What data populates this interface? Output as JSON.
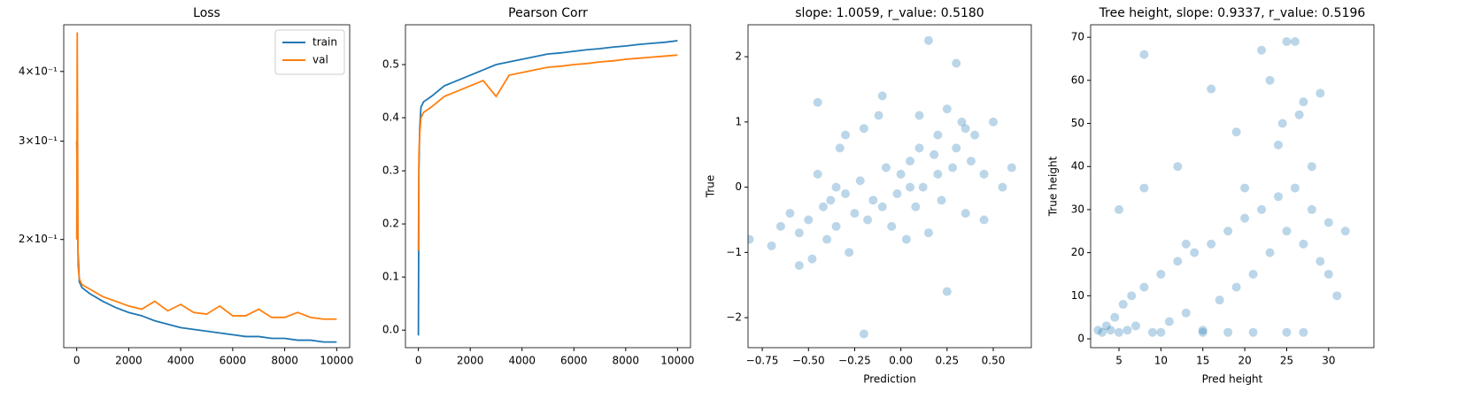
{
  "chart_data": [
    {
      "type": "line",
      "title": "Loss",
      "log_y": true,
      "legend": "upper right",
      "x": [
        0,
        20,
        50,
        100,
        200,
        500,
        1000,
        1500,
        2000,
        2500,
        3000,
        3500,
        4000,
        4500,
        5000,
        5500,
        6000,
        6500,
        7000,
        7500,
        8000,
        8500,
        9000,
        9500,
        10000
      ],
      "series": [
        {
          "name": "train",
          "color": "#1f77b4",
          "values": [
            0.3,
            0.25,
            0.19,
            0.168,
            0.164,
            0.16,
            0.155,
            0.151,
            0.148,
            0.146,
            0.143,
            0.141,
            0.139,
            0.138,
            0.137,
            0.136,
            0.135,
            0.134,
            0.134,
            0.133,
            0.133,
            0.132,
            0.132,
            0.131,
            0.131
          ]
        },
        {
          "name": "val",
          "color": "#ff7f0e",
          "values": [
            0.2,
            0.47,
            0.18,
            0.17,
            0.166,
            0.163,
            0.158,
            0.155,
            0.152,
            0.15,
            0.155,
            0.149,
            0.153,
            0.148,
            0.147,
            0.152,
            0.146,
            0.146,
            0.15,
            0.145,
            0.145,
            0.148,
            0.145,
            0.144,
            0.144
          ]
        }
      ],
      "xlim": [
        -500,
        10500
      ],
      "xticks": [
        0,
        2000,
        4000,
        6000,
        8000,
        10000
      ],
      "ylim": [
        0.128,
        0.485
      ],
      "yticks": [
        {
          "value": 0.2,
          "label": "2×10⁻¹"
        },
        {
          "value": 0.3,
          "label": "3×10⁻¹"
        },
        {
          "value": 0.4,
          "label": "4×10⁻¹"
        }
      ]
    },
    {
      "type": "line",
      "title": "Pearson Corr",
      "x": [
        0,
        20,
        50,
        100,
        200,
        500,
        1000,
        1500,
        2000,
        2500,
        3000,
        3500,
        4000,
        4500,
        5000,
        5500,
        6000,
        6500,
        7000,
        7500,
        8000,
        8500,
        9000,
        9500,
        10000
      ],
      "series": [
        {
          "color": "#1f77b4",
          "values": [
            -0.01,
            0.3,
            0.38,
            0.42,
            0.43,
            0.44,
            0.46,
            0.47,
            0.48,
            0.49,
            0.5,
            0.505,
            0.51,
            0.515,
            0.52,
            0.522,
            0.525,
            0.528,
            0.53,
            0.533,
            0.535,
            0.538,
            0.54,
            0.542,
            0.545
          ]
        },
        {
          "color": "#ff7f0e",
          "values": [
            0.15,
            0.33,
            0.37,
            0.4,
            0.41,
            0.42,
            0.44,
            0.45,
            0.46,
            0.47,
            0.44,
            0.48,
            0.485,
            0.49,
            0.495,
            0.497,
            0.5,
            0.502,
            0.505,
            0.507,
            0.51,
            0.512,
            0.514,
            0.516,
            0.518
          ]
        }
      ],
      "xlim": [
        -500,
        10500
      ],
      "xticks": [
        0,
        2000,
        4000,
        6000,
        8000,
        10000
      ],
      "ylim": [
        -0.033,
        0.575
      ],
      "yticks": [
        {
          "value": 0,
          "label": "0.0"
        },
        0.1,
        0.2,
        0.3,
        0.4,
        0.5
      ]
    },
    {
      "type": "scatter",
      "title": "slope: 1.0059, r_value: 0.5180",
      "xlabel": "Prediction",
      "ylabel": "True",
      "color": "#1f77b4",
      "alpha": 0.3,
      "x": [
        -0.82,
        -0.7,
        -0.65,
        -0.6,
        -0.55,
        -0.5,
        -0.48,
        -0.45,
        -0.42,
        -0.4,
        -0.38,
        -0.35,
        -0.33,
        -0.3,
        -0.28,
        -0.25,
        -0.22,
        -0.2,
        -0.18,
        -0.15,
        -0.12,
        -0.1,
        -0.08,
        -0.05,
        -0.02,
        0.0,
        0.03,
        0.05,
        0.08,
        0.1,
        0.12,
        0.15,
        0.18,
        0.2,
        0.22,
        0.25,
        0.28,
        0.3,
        0.33,
        0.35,
        0.38,
        0.4,
        0.45,
        0.5,
        0.55,
        0.6,
        -0.45,
        -0.3,
        -0.1,
        0.1,
        0.25,
        0.3,
        -0.2,
        0.15,
        0.05,
        -0.55,
        0.45,
        -0.35,
        0.2,
        0.35
      ],
      "values": [
        -0.8,
        -0.9,
        -0.6,
        -0.4,
        -0.7,
        -0.5,
        -1.1,
        0.2,
        -0.3,
        -0.8,
        -0.2,
        -0.6,
        0.6,
        -0.1,
        -1.0,
        -0.4,
        0.1,
        -2.25,
        -0.5,
        -0.2,
        1.1,
        -0.3,
        0.3,
        -0.6,
        -0.1,
        0.2,
        -0.8,
        0.4,
        -0.3,
        0.6,
        0.0,
        2.25,
        0.5,
        0.8,
        -0.2,
        1.2,
        0.3,
        0.6,
        1.0,
        -0.4,
        0.4,
        0.8,
        0.2,
        1.0,
        0.0,
        0.3,
        1.3,
        0.8,
        1.4,
        1.1,
        -1.6,
        1.9,
        0.9,
        -0.7,
        0.0,
        -1.2,
        -0.5,
        0.0,
        0.2,
        0.9
      ],
      "xlim": [
        -0.827,
        0.706
      ],
      "xticks": [
        {
          "value": -0.75,
          "label": "−0.75"
        },
        {
          "value": -0.5,
          "label": "−0.50"
        },
        {
          "value": -0.25,
          "label": "−0.25"
        },
        {
          "value": 0,
          "label": "0.00"
        },
        0.25,
        {
          "value": 0.5,
          "label": "0.50"
        }
      ],
      "ylim": [
        -2.46,
        2.49
      ],
      "yticks": [
        {
          "value": -2,
          "label": "−2"
        },
        {
          "value": -1,
          "label": "−1"
        },
        0,
        1,
        2
      ]
    },
    {
      "type": "scatter",
      "title": "Tree height, slope: 0.9337, r_value: 0.5196",
      "xlabel": "Pred height",
      "ylabel": "True height",
      "color": "#1f77b4",
      "alpha": 0.3,
      "x": [
        2.5,
        3,
        3.5,
        4,
        4.5,
        5,
        5.5,
        6,
        6.5,
        7,
        8,
        9,
        10,
        11,
        12,
        13,
        14,
        15,
        16,
        17,
        18,
        19,
        20,
        21,
        22,
        23,
        24,
        25,
        26,
        27,
        28,
        29,
        30,
        31,
        32,
        5,
        8,
        12,
        16,
        20,
        22,
        24,
        25,
        26,
        27,
        28,
        23,
        24.5,
        26.5,
        29,
        10,
        15,
        18,
        21,
        25,
        27,
        13,
        19,
        8,
        30
      ],
      "values": [
        2,
        1.5,
        3,
        2,
        5,
        1.5,
        8,
        2,
        10,
        3,
        12,
        1.5,
        15,
        4,
        18,
        6,
        20,
        2,
        22,
        9,
        25,
        12,
        28,
        15,
        30,
        20,
        33,
        25,
        35,
        22,
        30,
        18,
        27,
        10,
        25,
        30,
        66,
        40,
        58,
        35,
        67,
        45,
        69,
        69,
        55,
        40,
        60,
        50,
        52,
        57,
        1.5,
        1.5,
        1.5,
        1.5,
        1.5,
        1.5,
        22,
        48,
        35,
        15
      ],
      "xlim": [
        1.62,
        35.4
      ],
      "xticks": [
        5,
        10,
        15,
        20,
        25,
        30
      ],
      "ylim": [
        -2.05,
        72.9
      ],
      "yticks": [
        0,
        10,
        20,
        30,
        40,
        50,
        60,
        70
      ]
    }
  ]
}
